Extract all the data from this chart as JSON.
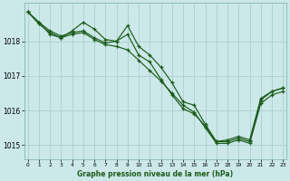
{
  "title": "Graphe pression niveau de la mer (hPa)",
  "bg_color": "#cce8e8",
  "grid_color": "#aad0d0",
  "line_color": "#1a5c1a",
  "ylim": [
    1014.6,
    1019.1
  ],
  "yticks": [
    1015,
    1016,
    1017,
    1018
  ],
  "xlim": [
    -0.3,
    23.3
  ],
  "xticks": [
    0,
    1,
    2,
    3,
    4,
    5,
    6,
    7,
    8,
    9,
    10,
    11,
    12,
    13,
    14,
    15,
    16,
    17,
    18,
    19,
    20,
    21,
    22,
    23
  ],
  "series1_x": [
    0,
    1,
    2,
    3,
    4,
    5,
    6,
    7,
    8,
    9,
    10,
    11,
    12,
    13,
    14,
    15,
    16,
    17,
    18,
    19,
    20,
    21,
    22,
    23
  ],
  "series1_y": [
    1018.85,
    1018.55,
    1018.3,
    1018.15,
    1018.25,
    1018.3,
    1018.1,
    1017.95,
    1018.0,
    1018.45,
    1017.85,
    1017.6,
    1017.25,
    1016.8,
    1016.25,
    1016.15,
    1015.6,
    1015.1,
    1015.1,
    1015.2,
    1015.1,
    1016.3,
    1016.55,
    1016.65
  ],
  "series2_x": [
    0,
    1,
    2,
    3,
    4,
    5,
    6,
    7,
    8,
    9,
    10,
    11,
    12,
    13,
    14,
    15,
    16,
    17,
    18,
    19,
    20,
    21,
    22,
    23
  ],
  "series2_y": [
    1018.85,
    1018.55,
    1018.2,
    1018.1,
    1018.3,
    1018.55,
    1018.35,
    1018.05,
    1018.0,
    1018.2,
    1017.6,
    1017.4,
    1016.9,
    1016.45,
    1016.05,
    1015.9,
    1015.55,
    1015.1,
    1015.15,
    1015.25,
    1015.15,
    1016.35,
    1016.55,
    1016.65
  ],
  "series3_x": [
    0,
    1,
    2,
    3,
    4,
    5,
    6,
    7,
    8,
    9,
    10,
    11,
    12,
    13,
    14,
    15,
    16,
    17,
    18,
    19,
    20,
    21,
    22,
    23
  ],
  "series3_y": [
    1018.85,
    1018.5,
    1018.25,
    1018.1,
    1018.2,
    1018.25,
    1018.05,
    1017.9,
    1017.85,
    1017.75,
    1017.45,
    1017.15,
    1016.85,
    1016.5,
    1016.15,
    1015.95,
    1015.5,
    1015.05,
    1015.05,
    1015.15,
    1015.05,
    1016.2,
    1016.45,
    1016.55
  ]
}
